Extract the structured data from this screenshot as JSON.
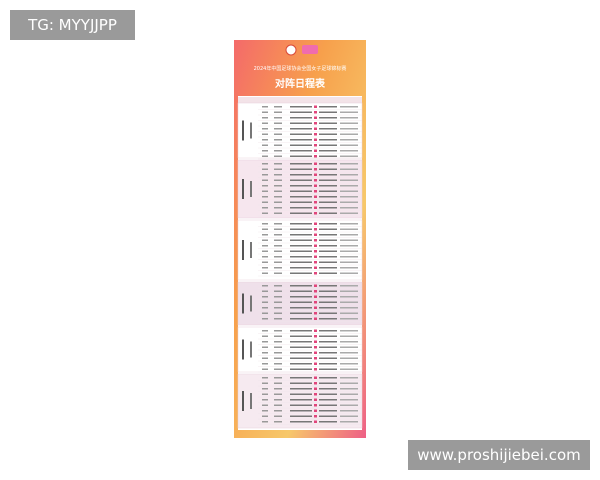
{
  "watermark_top": "TG: MYYJJPP",
  "watermark_bottom": "www.proshijiebei.com",
  "poster": {
    "title": "2024年中国足球协会全国女子足球锦标赛",
    "heading": "对阵日程表"
  }
}
